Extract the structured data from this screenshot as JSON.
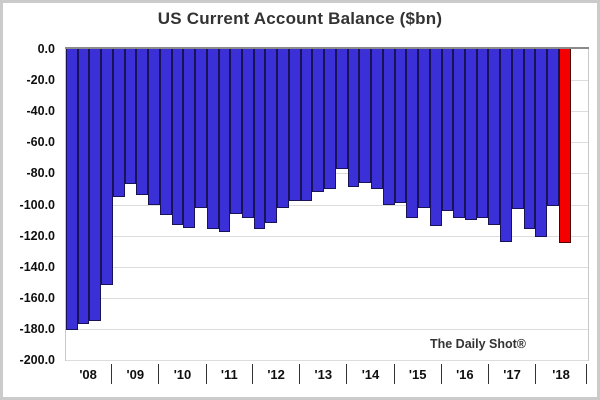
{
  "title": "US Current Account Balance ($bn)",
  "watermark": "The Daily Shot®",
  "y_axis": {
    "tick_labels": [
      "0.0",
      "-20.0",
      "-40.0",
      "-60.0",
      "-80.0",
      "-100.0",
      "-120.0",
      "-140.0",
      "-160.0",
      "-180.0",
      "-200.0"
    ]
  },
  "x_axis": {
    "year_labels": [
      "'08",
      "'09",
      "'10",
      "'11",
      "'12",
      "'13",
      "'14",
      "'15",
      "'16",
      "'17",
      "'18"
    ]
  },
  "chart_data": {
    "type": "bar",
    "title": "US Current Account Balance ($bn)",
    "unit": "$bn",
    "ylim": [
      -200,
      0
    ],
    "y_tick_step": 20,
    "grid": "horizontal",
    "annotation": "The Daily Shot®",
    "bar_color": "#3b2fd8",
    "bar_border_color": "#181257",
    "highlight_color": "#f50000",
    "highlight_index": 42,
    "x_groups": [
      {
        "year": "'08",
        "quarters": 4
      },
      {
        "year": "'09",
        "quarters": 4
      },
      {
        "year": "'10",
        "quarters": 4
      },
      {
        "year": "'11",
        "quarters": 4
      },
      {
        "year": "'12",
        "quarters": 4
      },
      {
        "year": "'13",
        "quarters": 4
      },
      {
        "year": "'14",
        "quarters": 4
      },
      {
        "year": "'15",
        "quarters": 4
      },
      {
        "year": "'16",
        "quarters": 4
      },
      {
        "year": "'17",
        "quarters": 4
      },
      {
        "year": "'18",
        "quarters": 3
      }
    ],
    "quarters": [
      "2008 Q1",
      "2008 Q2",
      "2008 Q3",
      "2008 Q4",
      "2009 Q1",
      "2009 Q2",
      "2009 Q3",
      "2009 Q4",
      "2010 Q1",
      "2010 Q2",
      "2010 Q3",
      "2010 Q4",
      "2011 Q1",
      "2011 Q2",
      "2011 Q3",
      "2011 Q4",
      "2012 Q1",
      "2012 Q2",
      "2012 Q3",
      "2012 Q4",
      "2013 Q1",
      "2013 Q2",
      "2013 Q3",
      "2013 Q4",
      "2014 Q1",
      "2014 Q2",
      "2014 Q3",
      "2014 Q4",
      "2015 Q1",
      "2015 Q2",
      "2015 Q3",
      "2015 Q4",
      "2016 Q1",
      "2016 Q2",
      "2016 Q3",
      "2016 Q4",
      "2017 Q1",
      "2017 Q2",
      "2017 Q3",
      "2017 Q4",
      "2018 Q1",
      "2018 Q2",
      "2018 Q3"
    ],
    "values": [
      -181,
      -177,
      -175,
      -152,
      -95,
      -87,
      -94,
      -100,
      -107,
      -113,
      -115,
      -102,
      -116,
      -118,
      -106,
      -109,
      -116,
      -112,
      -102,
      -98,
      -98,
      -92,
      -90,
      -77,
      -89,
      -86,
      -90,
      -100,
      -99,
      -109,
      -102,
      -114,
      -104,
      -109,
      -110,
      -109,
      -113,
      -124,
      -103,
      -116,
      -121,
      -101,
      -125
    ]
  }
}
